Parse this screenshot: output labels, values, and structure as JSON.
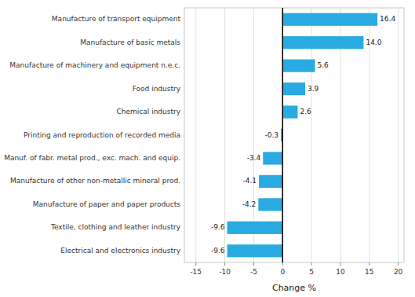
{
  "chart_data": {
    "type": "bar",
    "orientation": "horizontal",
    "categories": [
      "Electrical and electronics industry",
      "Textile, clothing and leather industry",
      "Manufacture of paper and paper products",
      "Manufacture of other non-metallic mineral prod.",
      "Manuf. of fabr. metal prod., exc. mach. and equip.",
      "Printing and reproduction of recorded media",
      "Chemical industry",
      "Food industry",
      "Manufacture of machinery and equipment n.e.c.",
      "Manufacture of basic metals",
      "Manufacture of transport equipment"
    ],
    "values": [
      -9.6,
      -9.6,
      -4.2,
      -4.1,
      -3.4,
      -0.3,
      2.6,
      3.9,
      5.6,
      14.0,
      16.4
    ],
    "value_labels": [
      "-9.6",
      "-9.6",
      "-4.2",
      "-4.1",
      "-3.4",
      "-0.3",
      "2.6",
      "3.9",
      "5.6",
      "14.0",
      "16.4"
    ],
    "color": "#29abe2",
    "xlabel": "Change %",
    "xlim": [
      -17,
      21
    ],
    "xticks": [
      -15,
      -10,
      -5,
      0,
      5,
      10,
      15,
      20
    ],
    "grid": true,
    "data_labels": true
  }
}
